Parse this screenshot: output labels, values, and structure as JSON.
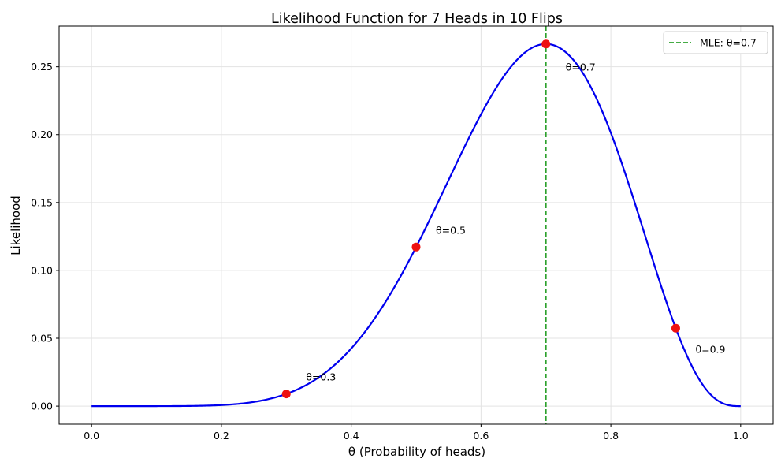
{
  "chart_data": {
    "type": "line",
    "title": "Likelihood Function for 7 Heads in 10 Flips",
    "xlabel": "θ (Probability of heads)",
    "ylabel": "Likelihood",
    "xlim": [
      -0.05,
      1.05
    ],
    "ylim": [
      -0.0133,
      0.28
    ],
    "xticks": [
      0.0,
      0.2,
      0.4,
      0.6,
      0.8,
      1.0
    ],
    "xtick_labels": [
      "0.0",
      "0.2",
      "0.4",
      "0.6",
      "0.8",
      "1.0"
    ],
    "yticks": [
      0.0,
      0.05,
      0.1,
      0.15,
      0.2,
      0.25
    ],
    "ytick_labels": [
      "0.00",
      "0.05",
      "0.10",
      "0.15",
      "0.20",
      "0.25"
    ],
    "grid": true,
    "curve": {
      "formula": "120 * θ^7 * (1-θ)^3",
      "x_range": [
        0,
        1
      ],
      "color": "#0000ee"
    },
    "points": [
      {
        "x": 0.3,
        "y": 0.009,
        "label": "θ=0.3"
      },
      {
        "x": 0.5,
        "y": 0.1172,
        "label": "θ=0.5"
      },
      {
        "x": 0.7,
        "y": 0.2668,
        "label": "θ=0.7"
      },
      {
        "x": 0.9,
        "y": 0.0574,
        "label": "θ=0.9"
      }
    ],
    "point_color": "#ee1111",
    "mle_line": {
      "x": 0.7,
      "color": "#2ca02c",
      "style": "dashed"
    },
    "legend": {
      "placement": "top-right",
      "entries": [
        {
          "label": "MLE: θ=0.7",
          "color": "#2ca02c"
        }
      ]
    }
  }
}
